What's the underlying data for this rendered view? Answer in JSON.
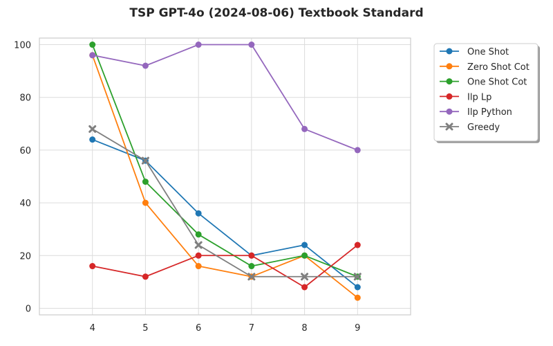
{
  "chart_data": {
    "type": "line",
    "title": "TSP GPT-4o (2024-08-06) Textbook Standard",
    "xlabel": "",
    "ylabel": "",
    "x": [
      4,
      5,
      6,
      7,
      8,
      9
    ],
    "xlim": [
      3,
      10
    ],
    "ylim": [
      -2.5,
      102.5
    ],
    "yticks": [
      0,
      20,
      40,
      60,
      80,
      100
    ],
    "grid": true,
    "legend_position": "outside-top-right",
    "series": [
      {
        "name": "One Shot",
        "color": "#1f77b4",
        "marker": "circle",
        "values": [
          64,
          56,
          36,
          20,
          24,
          8
        ]
      },
      {
        "name": "Zero Shot Cot",
        "color": "#ff7f0e",
        "marker": "circle",
        "values": [
          96,
          40,
          16,
          12,
          20,
          4
        ]
      },
      {
        "name": "One Shot Cot",
        "color": "#2ca02c",
        "marker": "circle",
        "values": [
          100,
          48,
          28,
          16,
          20,
          12
        ]
      },
      {
        "name": "Ilp Lp",
        "color": "#d62728",
        "marker": "circle",
        "values": [
          16,
          12,
          20,
          20,
          8,
          24
        ]
      },
      {
        "name": "Ilp Python",
        "color": "#9467bd",
        "marker": "circle",
        "values": [
          96,
          92,
          100,
          100,
          68,
          60
        ]
      },
      {
        "name": "Greedy",
        "color": "#7f7f7f",
        "marker": "x",
        "values": [
          68,
          56,
          24,
          12,
          12,
          12
        ]
      }
    ]
  }
}
